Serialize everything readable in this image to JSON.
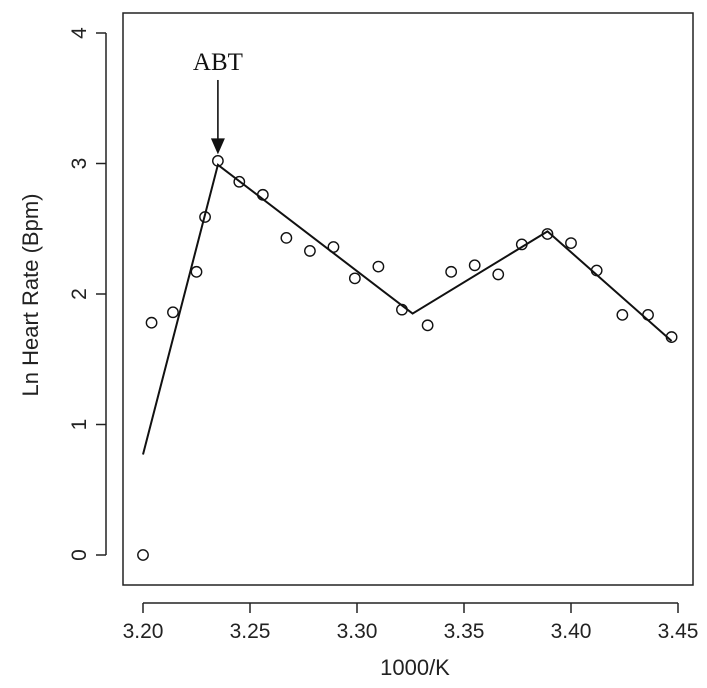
{
  "chart_data": {
    "type": "scatter",
    "title": "",
    "xlabel": "1000/K",
    "ylabel": "Ln Heart Rate (Bpm)",
    "xlim": [
      3.2,
      3.45
    ],
    "ylim": [
      0,
      4
    ],
    "xticks": [
      "3.20",
      "3.25",
      "3.30",
      "3.35",
      "3.40",
      "3.45"
    ],
    "yticks": [
      "0",
      "1",
      "2",
      "3",
      "4"
    ],
    "grid": false,
    "points": [
      {
        "x": 3.2,
        "y": 0.0
      },
      {
        "x": 3.204,
        "y": 1.78
      },
      {
        "x": 3.214,
        "y": 1.86
      },
      {
        "x": 3.225,
        "y": 2.17
      },
      {
        "x": 3.229,
        "y": 2.59
      },
      {
        "x": 3.235,
        "y": 3.02
      },
      {
        "x": 3.245,
        "y": 2.86
      },
      {
        "x": 3.256,
        "y": 2.76
      },
      {
        "x": 3.267,
        "y": 2.43
      },
      {
        "x": 3.278,
        "y": 2.33
      },
      {
        "x": 3.289,
        "y": 2.36
      },
      {
        "x": 3.299,
        "y": 2.12
      },
      {
        "x": 3.31,
        "y": 2.21
      },
      {
        "x": 3.321,
        "y": 1.88
      },
      {
        "x": 3.333,
        "y": 1.76
      },
      {
        "x": 3.344,
        "y": 2.17
      },
      {
        "x": 3.355,
        "y": 2.22
      },
      {
        "x": 3.366,
        "y": 2.15
      },
      {
        "x": 3.377,
        "y": 2.38
      },
      {
        "x": 3.389,
        "y": 2.46
      },
      {
        "x": 3.4,
        "y": 2.39
      },
      {
        "x": 3.412,
        "y": 2.18
      },
      {
        "x": 3.424,
        "y": 1.84
      },
      {
        "x": 3.436,
        "y": 1.84
      },
      {
        "x": 3.447,
        "y": 1.67
      }
    ],
    "fit_line": [
      {
        "x": 3.2,
        "y": 0.77
      },
      {
        "x": 3.235,
        "y": 2.99
      },
      {
        "x": 3.326,
        "y": 1.85
      },
      {
        "x": 3.389,
        "y": 2.48
      },
      {
        "x": 3.447,
        "y": 1.64
      }
    ],
    "annotation": {
      "label": "ABT",
      "x": 3.235,
      "arrow_from_y": 3.64,
      "arrow_to_y": 3.07
    }
  }
}
